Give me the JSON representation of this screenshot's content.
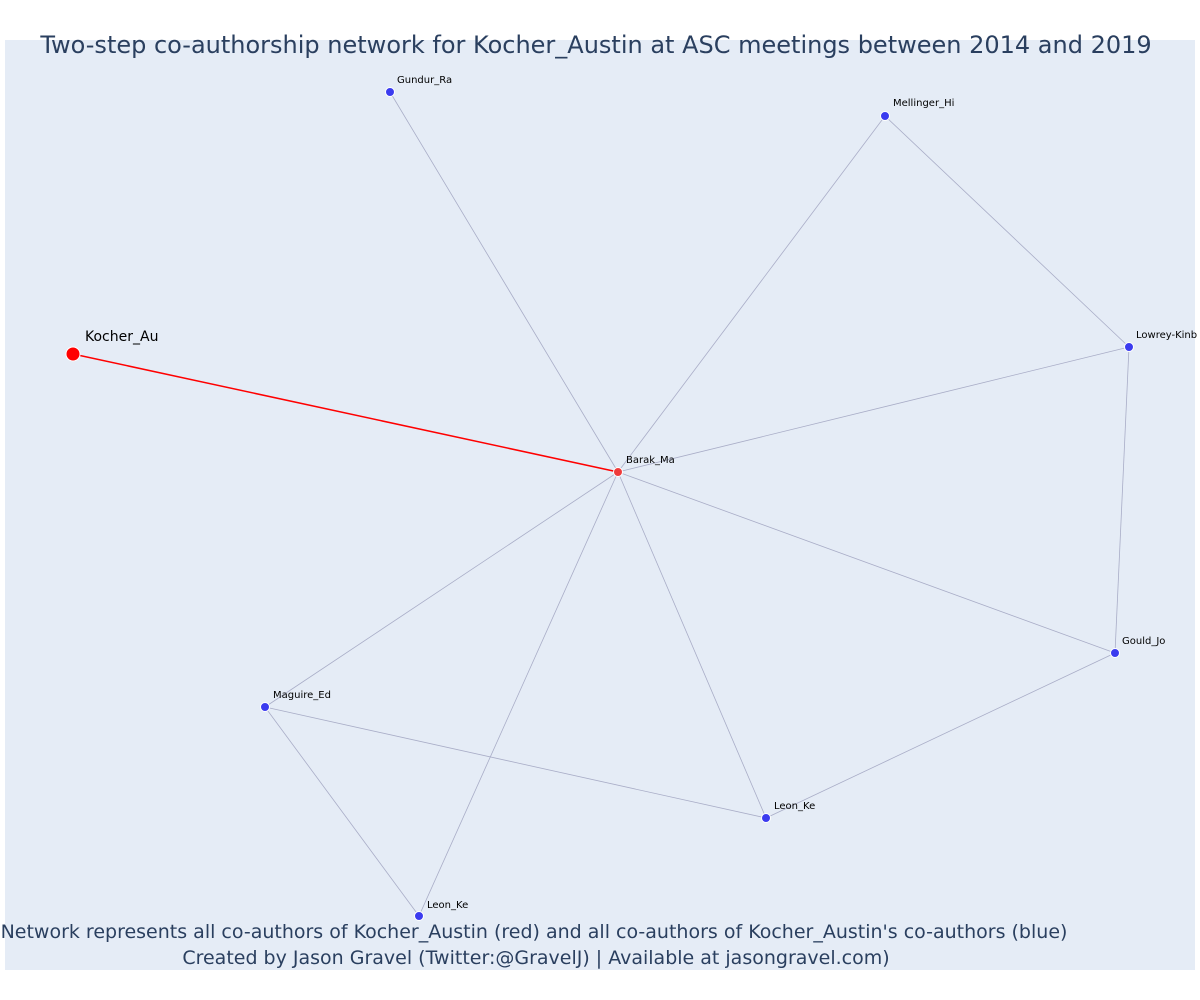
{
  "title": "Two-step co-authorship network for Kocher_Austin at ASC meetings between 2014 and 2019",
  "caption": {
    "line1": "Network represents all co-authors of Kocher_Austin (red) and all co-authors of Kocher_Austin's co-authors (blue)",
    "line2": "Created by Jason Gravel (Twitter:@GravelJ) | Available at jasongravel.com)"
  },
  "colors": {
    "background": "#e5ecf6",
    "focal": "#ff0000",
    "first_step": "#ef3b3b",
    "second_step": "#3b3bef",
    "edge": "#a9adc7",
    "focal_edge": "#ff0000",
    "title": "#2a3f5f"
  },
  "nodes": [
    {
      "id": "kocher",
      "label": "Kocher_Au",
      "group": "focal"
    },
    {
      "id": "barak",
      "label": "Barak_Ma",
      "group": "first_step"
    },
    {
      "id": "gundur",
      "label": "Gundur_Ra",
      "group": "second_step"
    },
    {
      "id": "mellinger",
      "label": "Mellinger_Hi",
      "group": "second_step"
    },
    {
      "id": "lowrey",
      "label": "Lowrey-Kinb",
      "group": "second_step"
    },
    {
      "id": "gould",
      "label": "Gould_Jo",
      "group": "second_step"
    },
    {
      "id": "leon1",
      "label": "Leon_Ke",
      "group": "second_step"
    },
    {
      "id": "maguire",
      "label": "Maguire_Ed",
      "group": "second_step"
    },
    {
      "id": "leon2",
      "label": "Leon_Ke",
      "group": "second_step"
    }
  ],
  "edges": [
    {
      "source": "kocher",
      "target": "barak",
      "type": "focal"
    },
    {
      "source": "barak",
      "target": "gundur",
      "type": "normal"
    },
    {
      "source": "barak",
      "target": "mellinger",
      "type": "normal"
    },
    {
      "source": "barak",
      "target": "lowrey",
      "type": "normal"
    },
    {
      "source": "barak",
      "target": "gould",
      "type": "normal"
    },
    {
      "source": "barak",
      "target": "leon1",
      "type": "normal"
    },
    {
      "source": "barak",
      "target": "maguire",
      "type": "normal"
    },
    {
      "source": "barak",
      "target": "leon2",
      "type": "normal"
    },
    {
      "source": "mellinger",
      "target": "lowrey",
      "type": "normal"
    },
    {
      "source": "lowrey",
      "target": "gould",
      "type": "normal"
    },
    {
      "source": "gould",
      "target": "leon1",
      "type": "normal"
    },
    {
      "source": "maguire",
      "target": "leon1",
      "type": "normal"
    },
    {
      "source": "maguire",
      "target": "leon2",
      "type": "normal"
    }
  ]
}
